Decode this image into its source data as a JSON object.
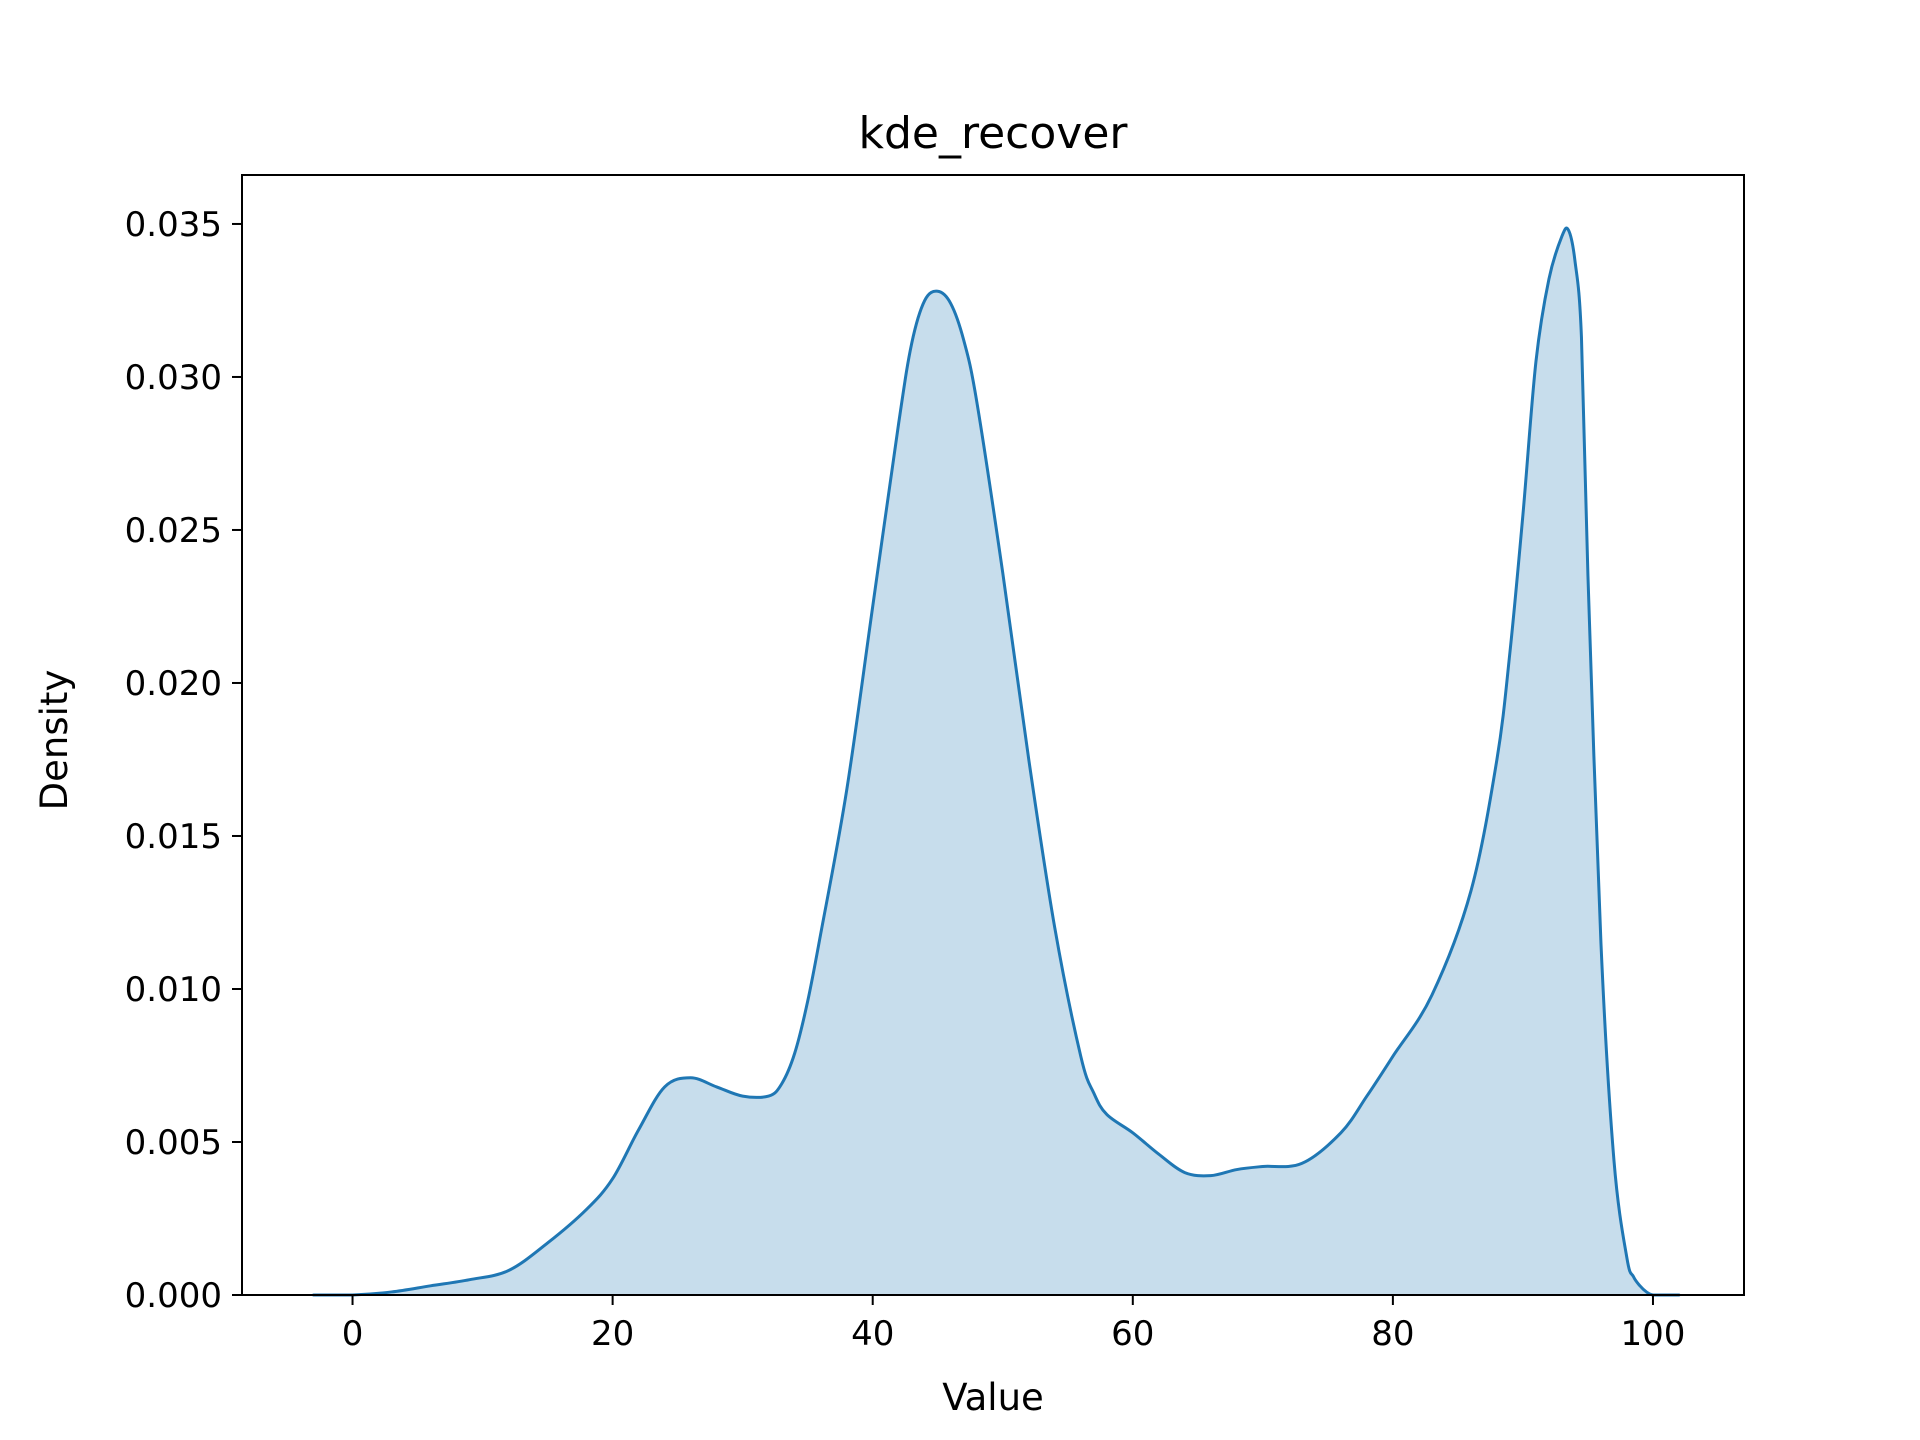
{
  "chart_data": {
    "type": "area",
    "title": "kde_recover",
    "xlabel": "Value",
    "ylabel": "Density",
    "xlim": [
      -8.5,
      107.0
    ],
    "ylim": [
      0.0,
      0.0366
    ],
    "xticks": [
      0,
      20,
      40,
      60,
      80,
      100
    ],
    "xtick_labels": [
      "0",
      "20",
      "40",
      "60",
      "80",
      "100"
    ],
    "yticks": [
      0.0,
      0.005,
      0.01,
      0.015,
      0.02,
      0.025,
      0.03,
      0.035
    ],
    "ytick_labels": [
      "0.000",
      "0.005",
      "0.010",
      "0.015",
      "0.020",
      "0.025",
      "0.030",
      "0.035"
    ],
    "grid": false,
    "line_color": "#1f77b4",
    "fill_color": "#1f77b4",
    "fill_opacity": 0.25,
    "series": [
      {
        "x": [
          -3,
          0,
          3,
          6,
          9,
          12,
          15,
          18,
          20,
          22,
          24,
          26,
          28,
          30,
          32,
          33,
          34,
          35,
          36,
          38,
          40,
          42,
          43,
          44,
          45,
          46,
          47,
          48,
          50,
          52,
          54,
          56,
          57,
          58,
          60,
          62,
          64,
          66,
          68,
          70,
          73,
          76,
          78,
          80,
          83,
          86,
          88,
          89,
          90,
          91,
          92,
          93,
          93.5,
          94,
          94.5,
          95,
          96,
          97,
          98,
          98.5,
          99,
          99.5,
          100,
          101,
          102
        ],
        "y": [
          0.0,
          0.0,
          0.0001,
          0.0003,
          0.0005,
          0.0008,
          0.0017,
          0.0028,
          0.0038,
          0.0054,
          0.0068,
          0.0071,
          0.0068,
          0.0065,
          0.0065,
          0.0069,
          0.0079,
          0.0096,
          0.0118,
          0.0165,
          0.0225,
          0.0285,
          0.0311,
          0.0325,
          0.0328,
          0.0324,
          0.0312,
          0.0292,
          0.0236,
          0.0175,
          0.012,
          0.0078,
          0.0066,
          0.0059,
          0.0053,
          0.0046,
          0.004,
          0.0039,
          0.0041,
          0.0042,
          0.0043,
          0.0053,
          0.0065,
          0.0078,
          0.0098,
          0.0132,
          0.0175,
          0.021,
          0.0255,
          0.0305,
          0.0332,
          0.0346,
          0.0348,
          0.0338,
          0.0313,
          0.0235,
          0.0115,
          0.0044,
          0.0012,
          0.0006,
          0.0003,
          0.0001,
          0.0,
          0.0,
          0.0
        ]
      }
    ]
  }
}
